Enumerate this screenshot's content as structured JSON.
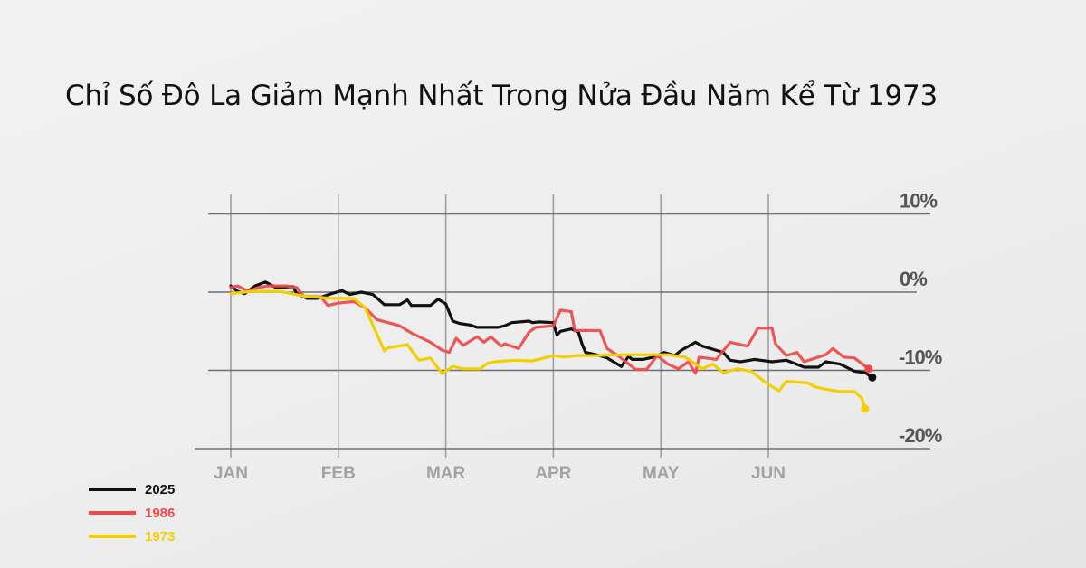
{
  "chart_data": {
    "type": "line",
    "title": "Chỉ Số Đô La Giảm Mạnh Nhất Trong Nửa Đầu Năm Kể Từ 1973",
    "xlabel": "",
    "ylabel": "",
    "x_ticks": [
      "JAN",
      "FEB",
      "MAR",
      "APR",
      "MAY",
      "JUN"
    ],
    "y_ticks": [
      {
        "value": 10,
        "label": "10%"
      },
      {
        "value": 0,
        "label": "0%"
      },
      {
        "value": -10,
        "label": "-10%"
      },
      {
        "value": -20,
        "label": "-20%"
      }
    ],
    "ylim": [
      -20,
      10
    ],
    "grid": true,
    "legend_position": "bottom-left",
    "series": [
      {
        "name": "2025",
        "color": "#111111",
        "end_marker": true,
        "x": [
          "01-01",
          "01-03",
          "01-05",
          "01-08",
          "01-11",
          "01-14",
          "01-19",
          "01-20",
          "01-23",
          "01-26",
          "01-30",
          "02-02",
          "02-04",
          "02-07",
          "02-10",
          "02-13",
          "02-17",
          "02-19",
          "02-20",
          "02-25",
          "02-27",
          "03-01",
          "03-03",
          "03-05",
          "03-08",
          "03-10",
          "03-16",
          "03-18",
          "03-20",
          "03-25",
          "03-26",
          "03-28",
          "04-01",
          "04-02",
          "04-03",
          "04-06",
          "04-08",
          "04-09",
          "04-10",
          "04-13",
          "04-16",
          "04-20",
          "04-22",
          "04-23",
          "04-26",
          "04-29",
          "05-02",
          "05-05",
          "05-07",
          "05-11",
          "05-13",
          "05-19",
          "05-21",
          "05-24",
          "05-28",
          "06-02",
          "06-06",
          "06-11",
          "06-15",
          "06-17",
          "06-21",
          "06-25",
          "06-28",
          "06-30"
        ],
        "y": [
          0.8,
          0.1,
          -0.2,
          0.8,
          1.3,
          0.6,
          0.7,
          -0.2,
          -0.8,
          -0.8,
          -0.2,
          0.2,
          -0.3,
          0,
          -0.3,
          -1.6,
          -1.6,
          -1.0,
          -1.7,
          -1.7,
          -0.9,
          -1.5,
          -3.7,
          -4.0,
          -4.2,
          -4.5,
          -4.5,
          -4.3,
          -3.9,
          -3.7,
          -3.9,
          -3.8,
          -3.9,
          -5.5,
          -5.0,
          -4.7,
          -5.1,
          -6.6,
          -7.7,
          -8.0,
          -8.4,
          -9.5,
          -8.2,
          -8.6,
          -8.6,
          -8.3,
          -7.7,
          -8.1,
          -7.4,
          -6.4,
          -6.9,
          -7.7,
          -8.7,
          -8.9,
          -8.6,
          -8.9,
          -8.7,
          -9.6,
          -9.6,
          -8.9,
          -9.2,
          -10.1,
          -10.3,
          -10.9
        ]
      },
      {
        "name": "1986",
        "color": "#f04848",
        "end_marker": true,
        "x": [
          "01-01",
          "01-03",
          "01-06",
          "01-09",
          "01-12",
          "01-17",
          "01-20",
          "01-22",
          "01-27",
          "01-29",
          "02-01",
          "02-05",
          "02-08",
          "02-11",
          "02-17",
          "02-20",
          "02-25",
          "02-28",
          "03-02",
          "03-04",
          "03-06",
          "03-10",
          "03-12",
          "03-14",
          "03-17",
          "03-18",
          "03-22",
          "03-25",
          "03-27",
          "04-01",
          "04-03",
          "04-06",
          "04-07",
          "04-14",
          "04-16",
          "04-19",
          "04-24",
          "04-27",
          "04-30",
          "05-03",
          "05-06",
          "05-09",
          "05-11",
          "05-12",
          "05-17",
          "05-21",
          "05-26",
          "05-29",
          "06-02",
          "06-03",
          "06-06",
          "06-09",
          "06-11",
          "06-15",
          "06-17",
          "06-19",
          "06-22",
          "06-25",
          "06-29"
        ],
        "y": [
          0.6,
          0.8,
          0.1,
          0.6,
          0.8,
          0.8,
          0.6,
          -0.5,
          -0.6,
          -1.7,
          -1.4,
          -1.2,
          -2.0,
          -3.5,
          -4.3,
          -5.2,
          -6.4,
          -7.4,
          -7.7,
          -5.9,
          -6.8,
          -5.7,
          -6.4,
          -5.7,
          -6.9,
          -6.6,
          -7.2,
          -5.1,
          -4.5,
          -4.3,
          -2.3,
          -2.5,
          -4.9,
          -4.9,
          -7.2,
          -8.1,
          -9.9,
          -9.9,
          -8.1,
          -9.2,
          -9.8,
          -8.9,
          -10.4,
          -8.3,
          -8.6,
          -6.4,
          -6.9,
          -4.6,
          -4.6,
          -6.6,
          -8.1,
          -7.7,
          -8.9,
          -8.3,
          -8.0,
          -7.2,
          -8.3,
          -8.4,
          -9.8
        ]
      },
      {
        "name": "1973",
        "color": "#f2cf00",
        "end_marker": true,
        "x": [
          "01-01",
          "01-07",
          "01-15",
          "01-22",
          "01-30",
          "02-05",
          "02-08",
          "02-13",
          "02-14",
          "02-19",
          "02-22",
          "02-25",
          "02-28",
          "03-03",
          "03-06",
          "03-11",
          "03-13",
          "03-15",
          "03-21",
          "03-26",
          "04-01",
          "04-04",
          "04-08",
          "04-13",
          "04-21",
          "05-03",
          "05-08",
          "05-13",
          "05-16",
          "05-19",
          "05-23",
          "05-27",
          "06-01",
          "06-04",
          "06-06",
          "06-12",
          "06-14",
          "06-17",
          "06-21",
          "06-25",
          "06-27",
          "06-28"
        ],
        "y": [
          -0.2,
          0.1,
          0.1,
          -0.5,
          -0.8,
          -0.8,
          -2.0,
          -7.5,
          -7.1,
          -6.7,
          -8.7,
          -8.4,
          -10.4,
          -9.5,
          -9.8,
          -9.8,
          -9.1,
          -8.9,
          -8.7,
          -8.8,
          -8.1,
          -8.3,
          -8.1,
          -8.1,
          -8.0,
          -8.0,
          -8.3,
          -9.8,
          -9.2,
          -10.3,
          -9.8,
          -10.1,
          -11.8,
          -12.6,
          -11.4,
          -11.6,
          -12.1,
          -12.4,
          -12.7,
          -12.7,
          -13.5,
          -14.9
        ]
      }
    ]
  }
}
